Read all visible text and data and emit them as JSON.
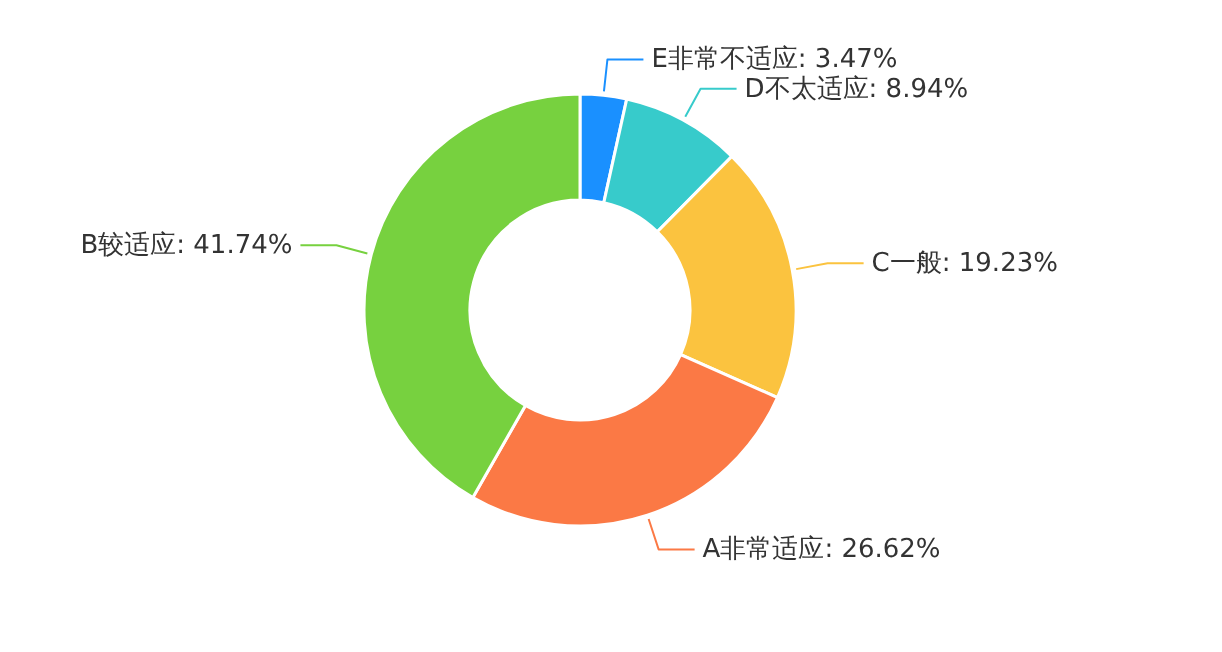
{
  "chart_data": {
    "type": "donut",
    "categories": [
      "E非常不适应",
      "D不太适应",
      "C一般",
      "A非常适应",
      "B较适应"
    ],
    "values": [
      3.47,
      8.94,
      19.23,
      26.62,
      41.74
    ],
    "value_labels": [
      "3.47%",
      "8.94%",
      "19.23%",
      "26.62%",
      "41.74%"
    ],
    "colors": [
      "#1a90ff",
      "#37cbcb",
      "#fbc33f",
      "#fb7945",
      "#77d13f"
    ]
  }
}
